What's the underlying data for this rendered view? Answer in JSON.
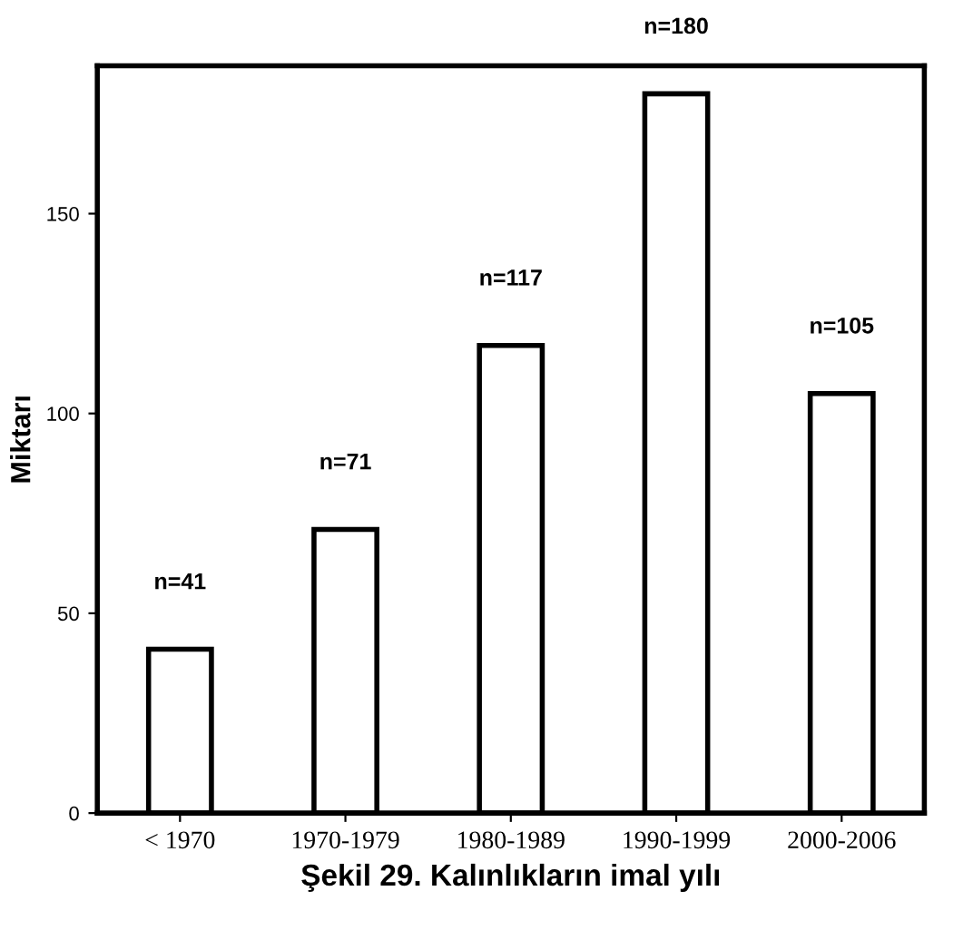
{
  "chart_data": {
    "type": "bar",
    "categories": [
      "< 1970",
      "1970-1979",
      "1980-1989",
      "1990-1999",
      "2000-2006"
    ],
    "values": [
      41,
      71,
      117,
      180,
      105
    ],
    "value_labels": [
      "n=41",
      "n=71",
      "n=117",
      "n=180",
      "n=105"
    ],
    "color": "#ffffff",
    "ylim": [
      0,
      187
    ],
    "yticks": [
      0,
      50,
      100,
      150
    ],
    "ylabel": "Miktarı",
    "xlabel": "Şekil 29. Kalınlıkların imal yılı",
    "grid": false,
    "legend": false
  }
}
